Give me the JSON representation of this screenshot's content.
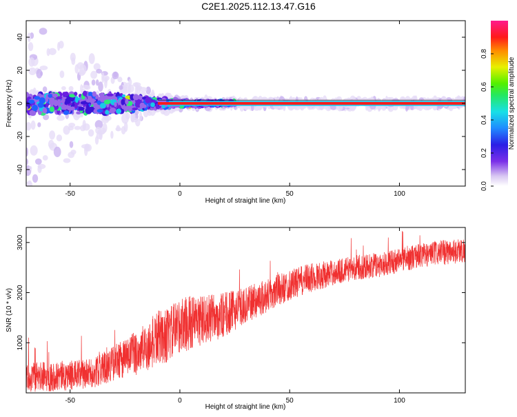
{
  "title": "C2E1.2025.112.13.47.G16",
  "chart_data": [
    {
      "type": "heatmap",
      "xlabel": "Height of straight line (km)",
      "ylabel": "Frequency (Hz)",
      "xlim": [
        -70,
        130
      ],
      "ylim": [
        -50,
        50
      ],
      "xticks": [
        -50,
        0,
        50,
        100
      ],
      "yticks": [
        -40,
        -20,
        0,
        20,
        40
      ],
      "grid": false,
      "colorbar": {
        "label": "Normalized spectral amplitude",
        "range": [
          0,
          1
        ],
        "ticks": [
          "0.0",
          "0.2",
          "0.4",
          "0.6",
          "0.8"
        ],
        "colormap": "rainbow (white/lavender → purple → blue → cyan → green → yellow → red → magenta)"
      },
      "features": {
        "dominant_frequency_hz": 0,
        "description_points": [
          {
            "x_km": -70,
            "spread_hz": 50,
            "core_halfwidth_hz": 6
          },
          {
            "x_km": -30,
            "spread_hz": 20,
            "core_halfwidth_hz": 6
          },
          {
            "x_km": -12,
            "spread_hz": 6,
            "core_halfwidth_hz": 3
          },
          {
            "x_km": 0,
            "spread_hz": 3,
            "core_halfwidth_hz": 2
          },
          {
            "x_km": 20,
            "spread_hz": 2,
            "core_halfwidth_hz": 1
          },
          {
            "x_km": 130,
            "spread_hz": 2,
            "core_halfwidth_hz": 1
          }
        ]
      }
    },
    {
      "type": "line",
      "xlabel": "Height of straight line (km)",
      "ylabel": "SNR (10 * v/v)",
      "xlim": [
        -70,
        130
      ],
      "ylim": [
        0,
        3300
      ],
      "xticks": [
        -50,
        0,
        50,
        100
      ],
      "yticks": [
        1000,
        2000,
        3000
      ],
      "series": [
        {
          "color": "#f03030",
          "trend_x": [
            -70,
            -50,
            -40,
            -30,
            -20,
            -15,
            -10,
            -5,
            0,
            5,
            10,
            20,
            30,
            40,
            50,
            60,
            70,
            80,
            90,
            100,
            110,
            120,
            130
          ],
          "trend_y": [
            300,
            350,
            380,
            600,
            800,
            900,
            1100,
            1150,
            1350,
            1400,
            1450,
            1550,
            1750,
            1950,
            2150,
            2300,
            2400,
            2500,
            2550,
            2650,
            2750,
            2800,
            2850
          ],
          "noise_amplitude": [
            300,
            300,
            300,
            350,
            450,
            500,
            550,
            550,
            550,
            550,
            500,
            450,
            350,
            350,
            300,
            300,
            250,
            250,
            250,
            250,
            250,
            250,
            250
          ]
        }
      ]
    }
  ],
  "colors": {
    "line": "#f03030",
    "axis": "#000000",
    "background": "#ffffff"
  }
}
